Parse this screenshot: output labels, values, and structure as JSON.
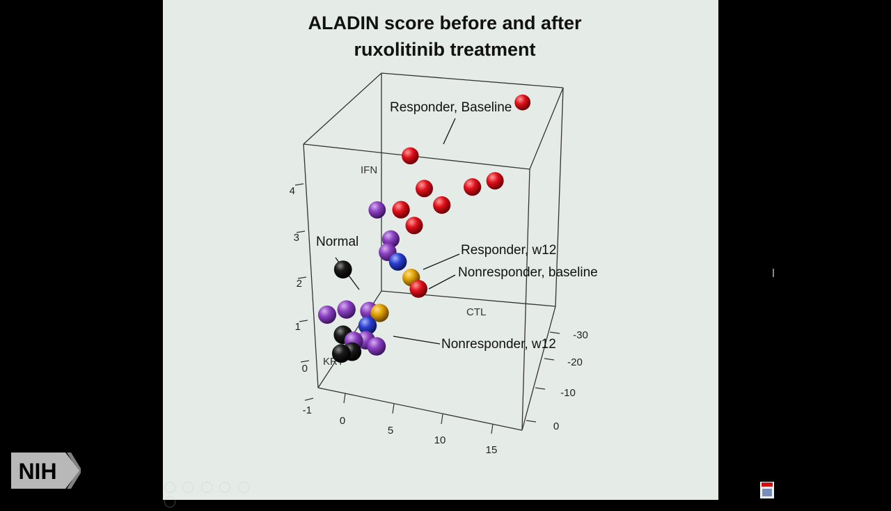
{
  "slide": {
    "title_lines": [
      "ALADIN score before and after",
      "ruxolitinib treatment"
    ]
  },
  "logo": {
    "text": "NIH"
  },
  "colors": {
    "responder_baseline": "#e0101a",
    "responder_w12": "#8a3fc0",
    "nonresponder_baseline": "#2a3fd0",
    "nonresponder_w12": "#e0a000",
    "normal": "#111111"
  },
  "chart_data": {
    "type": "scatter",
    "title": "ALADIN score before and after ruxolitinib treatment",
    "axis_labels": {
      "ifn": "IFN",
      "ctl": "CTL",
      "krt": "KRT"
    },
    "vertical_axis_ticks": [
      "-1",
      "0",
      "1",
      "2",
      "3",
      "4"
    ],
    "front_axis_ticks": [
      "0",
      "5",
      "10",
      "15"
    ],
    "side_axis_ticks": [
      "0",
      "-10",
      "-20",
      "-30"
    ],
    "annotations": [
      "Responder, Baseline",
      "Normal",
      "Responder, w12",
      "Nonresponder, baseline",
      "Nonresponder, w12"
    ],
    "series": [
      {
        "group": "responder_baseline",
        "points": [
          {
            "krt": 15,
            "ctl": -30,
            "ifn": 4.9
          },
          {
            "krt": 5,
            "ctl": -18,
            "ifn": 4.0
          },
          {
            "krt": 12,
            "ctl": -12,
            "ifn": 3.9
          },
          {
            "krt": 14,
            "ctl": -14,
            "ifn": 4.0
          },
          {
            "krt": 7,
            "ctl": -14,
            "ifn": 3.5
          },
          {
            "krt": 9,
            "ctl": -12,
            "ifn": 3.3
          },
          {
            "krt": 5,
            "ctl": -12,
            "ifn": 3.0
          },
          {
            "krt": 6,
            "ctl": -14,
            "ifn": 2.5
          },
          {
            "krt": 7,
            "ctl": -10,
            "ifn": 1.2
          }
        ]
      },
      {
        "group": "responder_w12",
        "points": [
          {
            "krt": 2,
            "ctl": -16,
            "ifn": 2.6
          },
          {
            "krt": 4,
            "ctl": -12,
            "ifn": 2.2
          },
          {
            "krt": 4,
            "ctl": -10,
            "ifn": 2.0
          },
          {
            "krt": 1,
            "ctl": -4,
            "ifn": 0.8
          },
          {
            "krt": 3,
            "ctl": -5,
            "ifn": 0.8
          },
          {
            "krt": -1,
            "ctl": -5,
            "ifn": 0.5
          },
          {
            "krt": 2,
            "ctl": -2,
            "ifn": 0.2
          },
          {
            "krt": 3,
            "ctl": -3,
            "ifn": 0.2
          },
          {
            "krt": 4,
            "ctl": -3,
            "ifn": 0.1
          }
        ]
      },
      {
        "group": "nonresponder_baseline",
        "points": [
          {
            "krt": 5,
            "ctl": -10,
            "ifn": 1.8
          },
          {
            "krt": 3,
            "ctl": -4,
            "ifn": 0.5
          }
        ]
      },
      {
        "group": "nonresponder_w12",
        "points": [
          {
            "krt": 6,
            "ctl": -12,
            "ifn": 1.3
          },
          {
            "krt": 4,
            "ctl": -5,
            "ifn": 0.8
          }
        ]
      },
      {
        "group": "normal",
        "points": [
          {
            "krt": 0,
            "ctl": -8,
            "ifn": 1.5
          },
          {
            "krt": 1,
            "ctl": -2,
            "ifn": 0.3
          },
          {
            "krt": 2,
            "ctl": -1,
            "ifn": 0.0
          },
          {
            "krt": 1,
            "ctl": -1,
            "ifn": -0.1
          }
        ]
      }
    ]
  }
}
